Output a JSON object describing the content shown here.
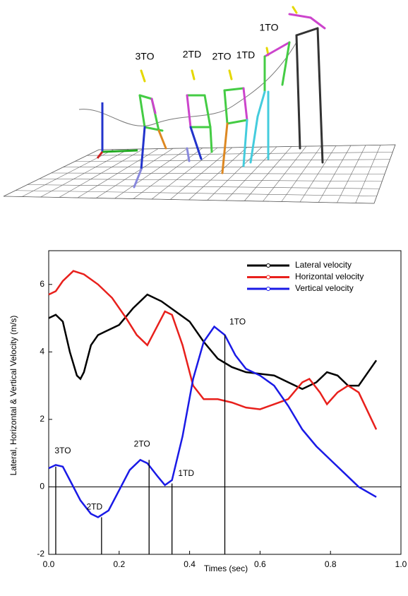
{
  "figure": {
    "labels": [
      "3TO",
      "2TD",
      "2TO",
      "1TD",
      "1TO"
    ]
  },
  "chart_data": {
    "type": "line",
    "xlabel": "Times  (sec)",
    "ylabel": "Lateral, Horizontal & Vertical Velocity   (m/s)",
    "xlim": [
      0,
      1
    ],
    "ylim": [
      -2,
      7
    ],
    "xticks": [
      {
        "value": 0,
        "label": "0.0"
      },
      {
        "value": 0.2,
        "label": "0.2"
      },
      {
        "value": 0.4,
        "label": "0.4"
      },
      {
        "value": 0.6,
        "label": "0.6"
      },
      {
        "value": 0.8,
        "label": "0.8"
      },
      {
        "value": 1,
        "label": "1.0"
      }
    ],
    "yticks": [
      -2,
      0,
      2,
      4,
      6
    ],
    "hline": 0,
    "legend": "upper right",
    "series": [
      {
        "name": "Lateral velocity",
        "color": "#000000",
        "x": [
          0,
          0.02,
          0.04,
          0.06,
          0.08,
          0.09,
          0.1,
          0.12,
          0.14,
          0.16,
          0.2,
          0.24,
          0.28,
          0.32,
          0.36,
          0.4,
          0.44,
          0.48,
          0.52,
          0.56,
          0.6,
          0.64,
          0.68,
          0.72,
          0.76,
          0.79,
          0.82,
          0.85,
          0.88,
          0.93
        ],
        "values": [
          5.0,
          5.1,
          4.9,
          4.0,
          3.3,
          3.2,
          3.4,
          4.2,
          4.5,
          4.6,
          4.8,
          5.3,
          5.7,
          5.5,
          5.2,
          4.9,
          4.3,
          3.8,
          3.55,
          3.4,
          3.35,
          3.3,
          3.1,
          2.9,
          3.1,
          3.4,
          3.3,
          3.0,
          3.0,
          3.75
        ]
      },
      {
        "name": "Horizontal velocity",
        "color": "#e8201c",
        "x": [
          0,
          0.02,
          0.04,
          0.07,
          0.1,
          0.14,
          0.18,
          0.22,
          0.25,
          0.28,
          0.3,
          0.33,
          0.35,
          0.38,
          0.41,
          0.44,
          0.48,
          0.52,
          0.56,
          0.6,
          0.64,
          0.68,
          0.72,
          0.74,
          0.77,
          0.79,
          0.82,
          0.85,
          0.88,
          0.93
        ],
        "values": [
          5.7,
          5.8,
          6.1,
          6.4,
          6.3,
          6.0,
          5.6,
          5.0,
          4.5,
          4.2,
          4.6,
          5.2,
          5.1,
          4.2,
          3.0,
          2.6,
          2.6,
          2.5,
          2.35,
          2.3,
          2.45,
          2.6,
          3.1,
          3.2,
          2.8,
          2.45,
          2.8,
          3.0,
          2.8,
          1.7
        ]
      },
      {
        "name": "Vertical velocity",
        "color": "#1a1ae6",
        "x": [
          0,
          0.02,
          0.04,
          0.06,
          0.09,
          0.12,
          0.14,
          0.17,
          0.2,
          0.23,
          0.26,
          0.28,
          0.31,
          0.33,
          0.35,
          0.38,
          0.41,
          0.44,
          0.47,
          0.5,
          0.53,
          0.56,
          0.6,
          0.64,
          0.68,
          0.72,
          0.76,
          0.8,
          0.84,
          0.88,
          0.93
        ],
        "values": [
          0.55,
          0.65,
          0.6,
          0.2,
          -0.4,
          -0.8,
          -0.9,
          -0.7,
          -0.1,
          0.5,
          0.8,
          0.7,
          0.3,
          0.05,
          0.2,
          1.5,
          3.2,
          4.3,
          4.75,
          4.5,
          3.9,
          3.5,
          3.3,
          3.0,
          2.4,
          1.7,
          1.2,
          0.8,
          0.4,
          0.0,
          -0.3
        ]
      }
    ],
    "events": [
      {
        "label": "3TO",
        "x": 0.02,
        "y": 0.6
      },
      {
        "label": "2TD",
        "x": 0.15,
        "y": -0.9
      },
      {
        "label": "2TO",
        "x": 0.285,
        "y": 0.8
      },
      {
        "label": "1TD",
        "x": 0.35,
        "y": 0.1
      },
      {
        "label": "1TO",
        "x": 0.5,
        "y": 4.5
      }
    ]
  }
}
